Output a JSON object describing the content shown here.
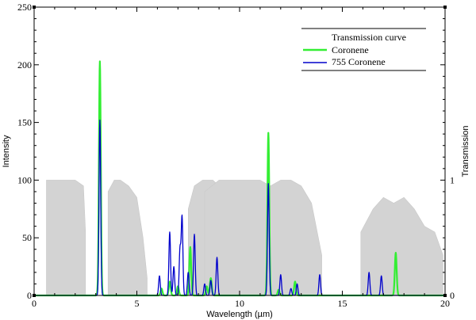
{
  "chart_data": {
    "type": "line",
    "xlabel": "Wavelength (µm)",
    "ylabel": "Intensity",
    "ylabel_right": "Transmission",
    "xlim": [
      0,
      20
    ],
    "ylim": [
      0,
      250
    ],
    "ylim_right": [
      0,
      2.5
    ],
    "x_ticks": [
      "0",
      "5",
      "10",
      "15",
      "20"
    ],
    "y_ticks": [
      "0",
      "50",
      "100",
      "150",
      "200",
      "250"
    ],
    "y_ticks_right": [
      "0",
      "1"
    ],
    "grid": false,
    "legend_position": "top-right",
    "legend": [
      "Transmission curve",
      "Coronene",
      "755 Coronene"
    ],
    "series": [
      {
        "name": "Transmission curve",
        "color": "#d3d3d3",
        "axis": "right",
        "style": "filled",
        "bands": [
          {
            "x": [
              0.6,
              0.9,
              1.5,
              2.0,
              2.4,
              2.5
            ],
            "y": [
              1.0,
              1.0,
              1.0,
              1.0,
              0.95,
              0.55
            ]
          },
          {
            "x": [
              3.6,
              3.9,
              4.2,
              4.6,
              5.0,
              5.3,
              5.5
            ],
            "y": [
              0.9,
              1.0,
              1.0,
              0.95,
              0.85,
              0.5,
              0.15
            ]
          },
          {
            "x": [
              7.5,
              7.8,
              8.2,
              8.7,
              9.0,
              9.3
            ],
            "y": [
              0.75,
              0.95,
              1.0,
              1.0,
              0.95,
              0.6
            ]
          },
          {
            "x": [
              8.3,
              9.0,
              10.0,
              11.0,
              11.5,
              12.0,
              12.5,
              13.0,
              13.5,
              14.0
            ],
            "y": [
              0.9,
              1.0,
              1.0,
              1.0,
              0.95,
              1.0,
              1.0,
              0.95,
              0.8,
              0.35
            ]
          },
          {
            "x": [
              15.9,
              16.5,
              17.0,
              17.5,
              18.0,
              18.5,
              19.0,
              19.5,
              19.9
            ],
            "y": [
              0.55,
              0.75,
              0.85,
              0.8,
              0.85,
              0.75,
              0.6,
              0.55,
              0.35
            ]
          }
        ]
      },
      {
        "name": "Coronene",
        "color": "#33ee33",
        "axis": "left",
        "peaks": [
          {
            "x": 3.2,
            "y": 203
          },
          {
            "x": 6.2,
            "y": 6
          },
          {
            "x": 6.6,
            "y": 12
          },
          {
            "x": 7.0,
            "y": 8
          },
          {
            "x": 7.6,
            "y": 42
          },
          {
            "x": 8.4,
            "y": 8
          },
          {
            "x": 8.6,
            "y": 15
          },
          {
            "x": 11.4,
            "y": 141
          },
          {
            "x": 11.9,
            "y": 5
          },
          {
            "x": 12.7,
            "y": 12
          },
          {
            "x": 17.6,
            "y": 37
          }
        ]
      },
      {
        "name": "755 Coronene",
        "color": "#0000cc",
        "axis": "left",
        "peaks": [
          {
            "x": 3.2,
            "y": 152
          },
          {
            "x": 6.1,
            "y": 17
          },
          {
            "x": 6.6,
            "y": 55
          },
          {
            "x": 6.8,
            "y": 25
          },
          {
            "x": 7.1,
            "y": 40
          },
          {
            "x": 7.2,
            "y": 68
          },
          {
            "x": 7.5,
            "y": 20
          },
          {
            "x": 7.8,
            "y": 53
          },
          {
            "x": 8.3,
            "y": 10
          },
          {
            "x": 8.6,
            "y": 13
          },
          {
            "x": 8.9,
            "y": 33
          },
          {
            "x": 11.4,
            "y": 97
          },
          {
            "x": 12.0,
            "y": 18
          },
          {
            "x": 12.5,
            "y": 6
          },
          {
            "x": 12.8,
            "y": 10
          },
          {
            "x": 13.9,
            "y": 18
          },
          {
            "x": 16.3,
            "y": 20
          },
          {
            "x": 16.9,
            "y": 17
          }
        ]
      }
    ]
  }
}
